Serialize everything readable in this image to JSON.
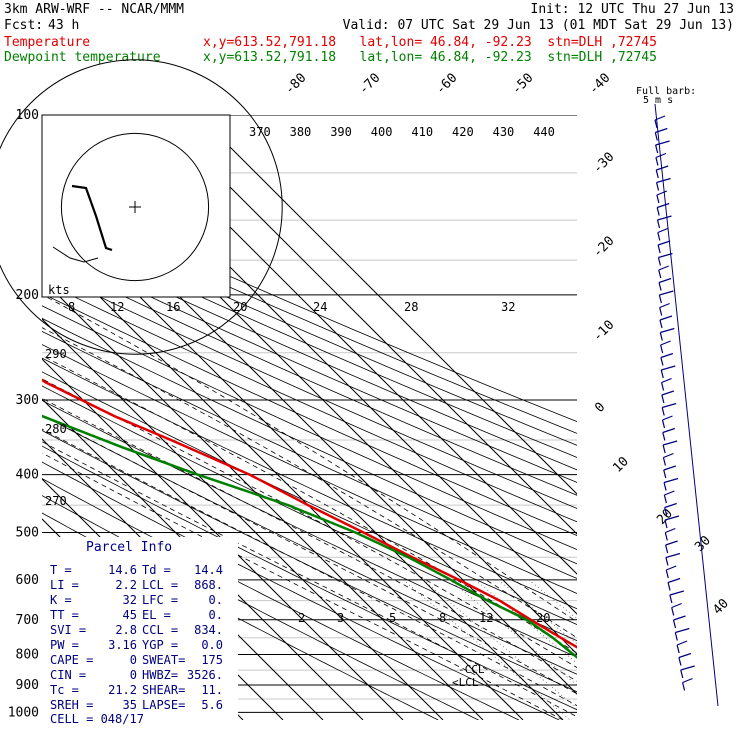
{
  "header": {
    "model": "3km ARW-WRF -- NCAR/MMM",
    "init": "Init: 12 UTC Thu 27 Jun 13",
    "fcst_label": "Fcst:",
    "fcst_value": "43 h",
    "valid": "Valid: 07 UTC Sat 29 Jun 13 (01 MDT Sat 29 Jun 13)",
    "line1_name": "Temperature",
    "line1_info": "x,y=613.52,791.18   lat,lon= 46.84, -92.23  stn=DLH ,72745",
    "line2_name": "Dewpoint temperature",
    "line2_info": "x,y=613.52,791.18   lat,lon= 46.84, -92.23  stn=DLH ,72745",
    "colors": {
      "temperature": "#e00000",
      "dewpoint": "#008000",
      "wind": "#000080",
      "mixing_ratio": "#444444"
    }
  },
  "chart_data": {
    "type": "line",
    "pressure_labels": [
      "100",
      "200",
      "300",
      "400",
      "500",
      "600",
      "700",
      "800",
      "900",
      "1000"
    ],
    "temp_labels": [
      "-80",
      "-70",
      "-60",
      "-50",
      "-40",
      "-30",
      "-20",
      "-10",
      "0",
      "10",
      "20",
      "30",
      "40"
    ],
    "theta_labels": [
      "370",
      "380",
      "390",
      "400",
      "410",
      "420",
      "430",
      "440"
    ],
    "theta_left_labels": [
      "290",
      "280",
      "270"
    ],
    "mixing_ratio_labels": [
      "2",
      "3",
      "5",
      "8",
      "12",
      "20"
    ],
    "hodo_speed_labels": [
      "8",
      "12",
      "16",
      "20",
      "24",
      "28",
      "32"
    ],
    "hodo_units": "kts",
    "barb_title": "Full barb:",
    "barb_units": "5 m s",
    "ccl_label": "-CCL",
    "lcl_label": "LCL",
    "series": [
      {
        "name": "Temperature",
        "points": [
          [
            100,
            -46
          ],
          [
            115,
            -44
          ],
          [
            140,
            -42
          ],
          [
            170,
            -46
          ],
          [
            190,
            -52
          ],
          [
            210,
            -56
          ],
          [
            250,
            -58
          ],
          [
            280,
            -55
          ],
          [
            320,
            -46
          ],
          [
            350,
            -38
          ],
          [
            400,
            -27
          ],
          [
            450,
            -20
          ],
          [
            500,
            -13
          ],
          [
            550,
            -7
          ],
          [
            600,
            -1
          ],
          [
            650,
            4
          ],
          [
            700,
            7
          ],
          [
            750,
            10
          ],
          [
            800,
            13
          ],
          [
            850,
            16
          ],
          [
            880,
            19
          ],
          [
            900,
            21
          ],
          [
            910,
            21
          ],
          [
            920,
            17
          ],
          [
            930,
            15
          ]
        ]
      },
      {
        "name": "Dewpoint temperature",
        "points": [
          [
            100,
            -90
          ],
          [
            125,
            -100
          ],
          [
            150,
            -98
          ],
          [
            190,
            -92
          ],
          [
            230,
            -86
          ],
          [
            280,
            -78
          ],
          [
            320,
            -64
          ],
          [
            360,
            -52
          ],
          [
            400,
            -40
          ],
          [
            450,
            -25
          ],
          [
            500,
            -15
          ],
          [
            550,
            -8
          ],
          [
            600,
            -3
          ],
          [
            650,
            1
          ],
          [
            700,
            6
          ],
          [
            750,
            8
          ],
          [
            800,
            9
          ],
          [
            850,
            10
          ],
          [
            880,
            11
          ],
          [
            900,
            10
          ],
          [
            910,
            12
          ],
          [
            920,
            14
          ],
          [
            930,
            14
          ]
        ]
      }
    ]
  },
  "parcel_info": {
    "title": "Parcel Info",
    "rows": [
      [
        "T  =",
        "14.6",
        "Td =",
        "14.4"
      ],
      [
        "LI =",
        "2.2",
        "LCL =",
        "868."
      ],
      [
        "K  =",
        "32",
        "LFC =",
        "0."
      ],
      [
        "TT =",
        "45",
        "EL  =",
        "0."
      ],
      [
        "SVI =",
        "2.8",
        "CCL =",
        "834."
      ],
      [
        "PW =",
        "3.16",
        "YGP =",
        "0.0"
      ],
      [
        "CAPE =",
        "0",
        "SWEAT=",
        "175"
      ],
      [
        "CIN =",
        "0",
        "HWBZ=",
        "3526."
      ],
      [
        "Tc =",
        "21.2",
        "SHEAR=",
        "11."
      ],
      [
        "SREH =",
        "35",
        "LAPSE=",
        "5.6"
      ]
    ],
    "cell": "CELL = 048/17"
  }
}
